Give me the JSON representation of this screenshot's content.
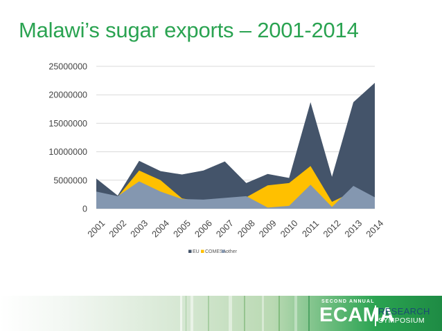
{
  "slide": {
    "title": "Malawi’s sugar exports – 2001-2014"
  },
  "chart_data": {
    "type": "area",
    "title": "",
    "xlabel": "",
    "ylabel": "",
    "ylim": [
      0,
      25000000
    ],
    "yticks": [
      0,
      5000000,
      10000000,
      15000000,
      20000000,
      25000000
    ],
    "ytick_labels": [
      "0",
      "5000000",
      "10000000",
      "15000000",
      "20000000",
      "25000000"
    ],
    "grid": "horizontal",
    "legend_position": "bottom",
    "stacked": false,
    "categories": [
      "2001",
      "2002",
      "2003",
      "2004",
      "2005",
      "2006",
      "2007",
      "2008",
      "2009",
      "2010",
      "2011",
      "2012",
      "2013",
      "2014"
    ],
    "series": [
      {
        "name": "EU",
        "color": "#44546a",
        "values": [
          5300000,
          2300000,
          8400000,
          6600000,
          6000000,
          6700000,
          8300000,
          4500000,
          6100000,
          5400000,
          18700000,
          5600000,
          18700000,
          22100000
        ]
      },
      {
        "name": "COMESA",
        "color": "#ffc000",
        "values": [
          2500000,
          2100000,
          6700000,
          5000000,
          1800000,
          1200000,
          1500000,
          2000000,
          4100000,
          4500000,
          7500000,
          1200000,
          3000000,
          2000000
        ]
      },
      {
        "name": "other",
        "color": "#8497b0",
        "values": [
          3000000,
          2200000,
          4800000,
          3000000,
          1700000,
          1600000,
          1900000,
          2200000,
          200000,
          500000,
          4200000,
          300000,
          4000000,
          2000000
        ]
      }
    ]
  },
  "footer": {
    "logo_top": "SECOND ANNUAL",
    "logo_main": "ECAMA",
    "logo_sub1": "RESEARCH",
    "logo_sub2": "SYMPOSIUM"
  }
}
